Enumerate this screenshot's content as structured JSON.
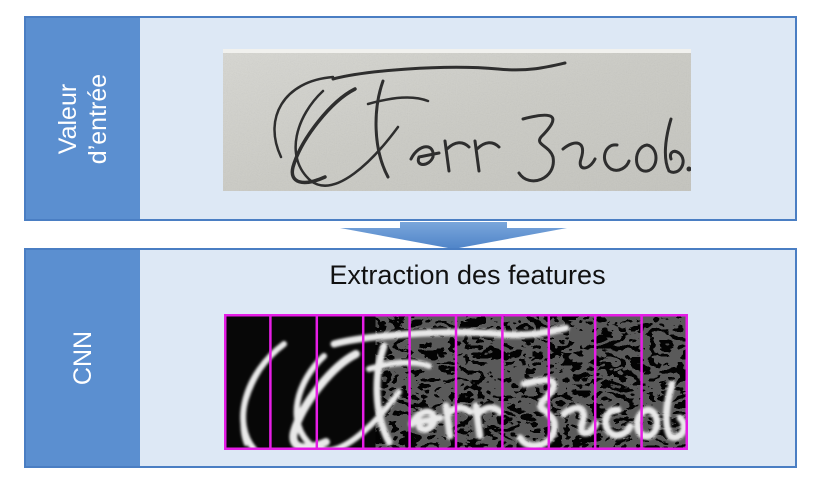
{
  "input_panel": {
    "label": "Valeur\nd’entrée",
    "image_text": "Terr Jacob."
  },
  "cnn_panel": {
    "label": "CNN",
    "title": "Extraction des features",
    "image_text": "Terr Jacob.",
    "segment_count": 10
  },
  "colors": {
    "panel_background": "#dde8f5",
    "panel_border": "#4a7ec3",
    "side_label_background": "#5b8fd0",
    "arrow": "#5b8fd0",
    "segment_lines": "#e61ee6"
  }
}
